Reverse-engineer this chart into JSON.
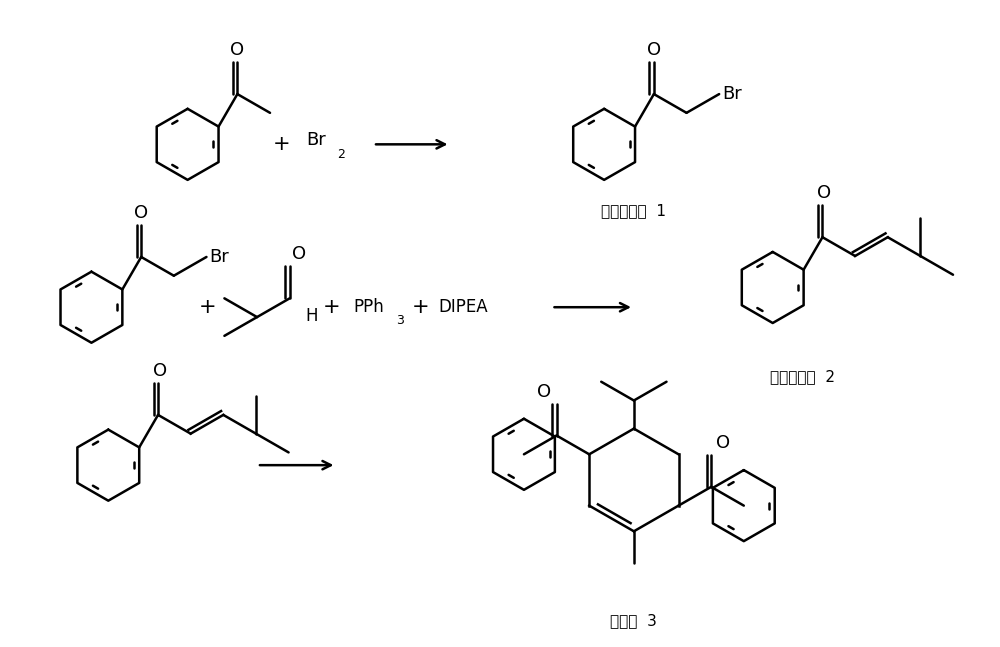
{
  "background_color": "#ffffff",
  "line_color": "#000000",
  "text_color": "#000000",
  "label1": "前体化合物  1",
  "label2": "前体化合物  2",
  "label3": "化合物  3",
  "figsize": [
    10.0,
    6.47
  ],
  "dpi": 100
}
